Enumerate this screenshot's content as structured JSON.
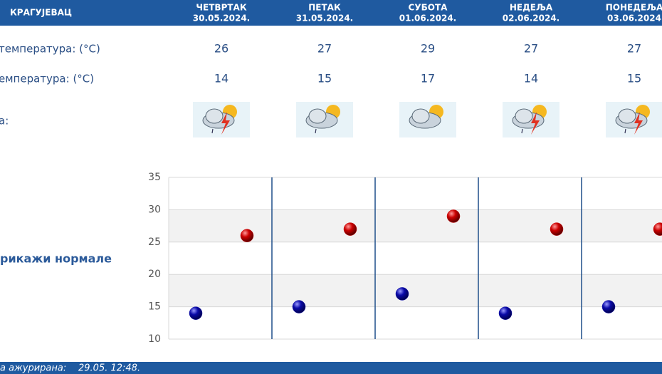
{
  "header": {
    "location": "КРАГУЈЕВАЦ",
    "days": [
      {
        "name": "ЧЕТВРТАК",
        "date": "30.05.2024."
      },
      {
        "name": "ПЕТАК",
        "date": "31.05.2024."
      },
      {
        "name": "СУБОТА",
        "date": "01.06.2024."
      },
      {
        "name": "НЕДЕЉА",
        "date": "02.06.2024."
      },
      {
        "name": "ПОНЕДЕЉА",
        "date": "03.06.2024"
      }
    ]
  },
  "table": {
    "rows": [
      {
        "label": "температура: (°C)",
        "values": [
          26,
          27,
          29,
          27,
          27
        ]
      },
      {
        "label": "емпература: (°C)",
        "values": [
          14,
          15,
          17,
          14,
          15
        ]
      },
      {
        "label": "а:"
      }
    ]
  },
  "link": "рикажи нормале",
  "footer": {
    "label": "а ажурирана:",
    "updated": "29.05. 12:48."
  },
  "chart_data": {
    "type": "dot",
    "ylim": [
      10,
      35
    ],
    "yticks": [
      10,
      15,
      20,
      25,
      30,
      35
    ],
    "bands": true,
    "series": [
      {
        "color": "#cc0000",
        "values": [
          26,
          27,
          29,
          27,
          27
        ]
      },
      {
        "color": "#0a0aa8",
        "values": [
          14,
          15,
          17,
          14,
          15
        ]
      }
    ]
  }
}
